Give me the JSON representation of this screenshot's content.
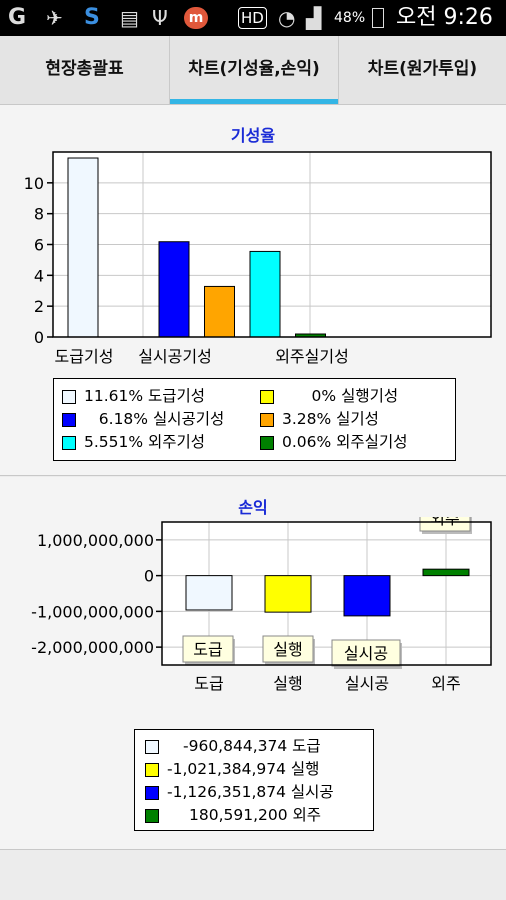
{
  "status_bar": {
    "icons": [
      "g-icon",
      "satellite-icon",
      "s-app-icon",
      "list-icon",
      "usb-icon",
      "m-app-icon"
    ],
    "hd_label": "HD",
    "battery": "48%",
    "time": "오전 9:26"
  },
  "tabs": [
    {
      "label": "현장총괄표",
      "selected": false
    },
    {
      "label": "차트(기성율,손익)",
      "selected": true
    },
    {
      "label": "차트(원가투입)",
      "selected": false
    }
  ],
  "colors": {
    "accent": "#33b5e5",
    "title": "#1a2bd6"
  },
  "chart_data": [
    {
      "type": "bar",
      "title": "기성율",
      "categories": [
        "도급기성",
        "실행기성",
        "실시공기성",
        "실기성",
        "외주기성",
        "외주실기성"
      ],
      "x_tick_labels": [
        "도급기성",
        "실시공기성",
        "외주실기성"
      ],
      "values": [
        11.61,
        0,
        6.18,
        3.28,
        5.551,
        0.06
      ],
      "colors": [
        "#f0f8ff",
        "#ffff00",
        "#0000ff",
        "#ffa500",
        "#00ffff",
        "#008000"
      ],
      "ylim": [
        0,
        12
      ],
      "y_ticks": [
        "0",
        "2",
        "4",
        "6",
        "8",
        "10"
      ],
      "grid": true,
      "legend": [
        {
          "label": "11.61% 도급기성",
          "color": "#f0f8ff"
        },
        {
          "label": "      0% 실행기성",
          "color": "#ffff00"
        },
        {
          "label": "   6.18% 실시공기성",
          "color": "#0000ff"
        },
        {
          "label": "3.28% 실기성",
          "color": "#ffa500"
        },
        {
          "label": "5.551% 외주기성",
          "color": "#00ffff"
        },
        {
          "label": "0.06% 외주실기성",
          "color": "#008000"
        }
      ]
    },
    {
      "type": "bar",
      "title": "손익",
      "categories": [
        "도급",
        "실행",
        "실시공",
        "외주"
      ],
      "values": [
        -960844374,
        -1021384974,
        -1126351874,
        180591200
      ],
      "colors": [
        "#f0f8ff",
        "#ffff00",
        "#0000ff",
        "#008000"
      ],
      "ylim": [
        -2500000000,
        1500000000
      ],
      "y_ticks": [
        "1,000,000,000",
        "0",
        "-1,000,000,000",
        "-2,000,000,000"
      ],
      "bar_labels": [
        "도급",
        "실행",
        "실시공",
        "외주"
      ],
      "grid": true,
      "legend": [
        {
          "label": "-960,844,374 도급",
          "color": "#f0f8ff"
        },
        {
          "label": "-1,021,384,974 실행",
          "color": "#ffff00"
        },
        {
          "label": "-1,126,351,874 실시공",
          "color": "#0000ff"
        },
        {
          "label": "180,591,200 외주",
          "color": "#008000"
        }
      ]
    }
  ]
}
